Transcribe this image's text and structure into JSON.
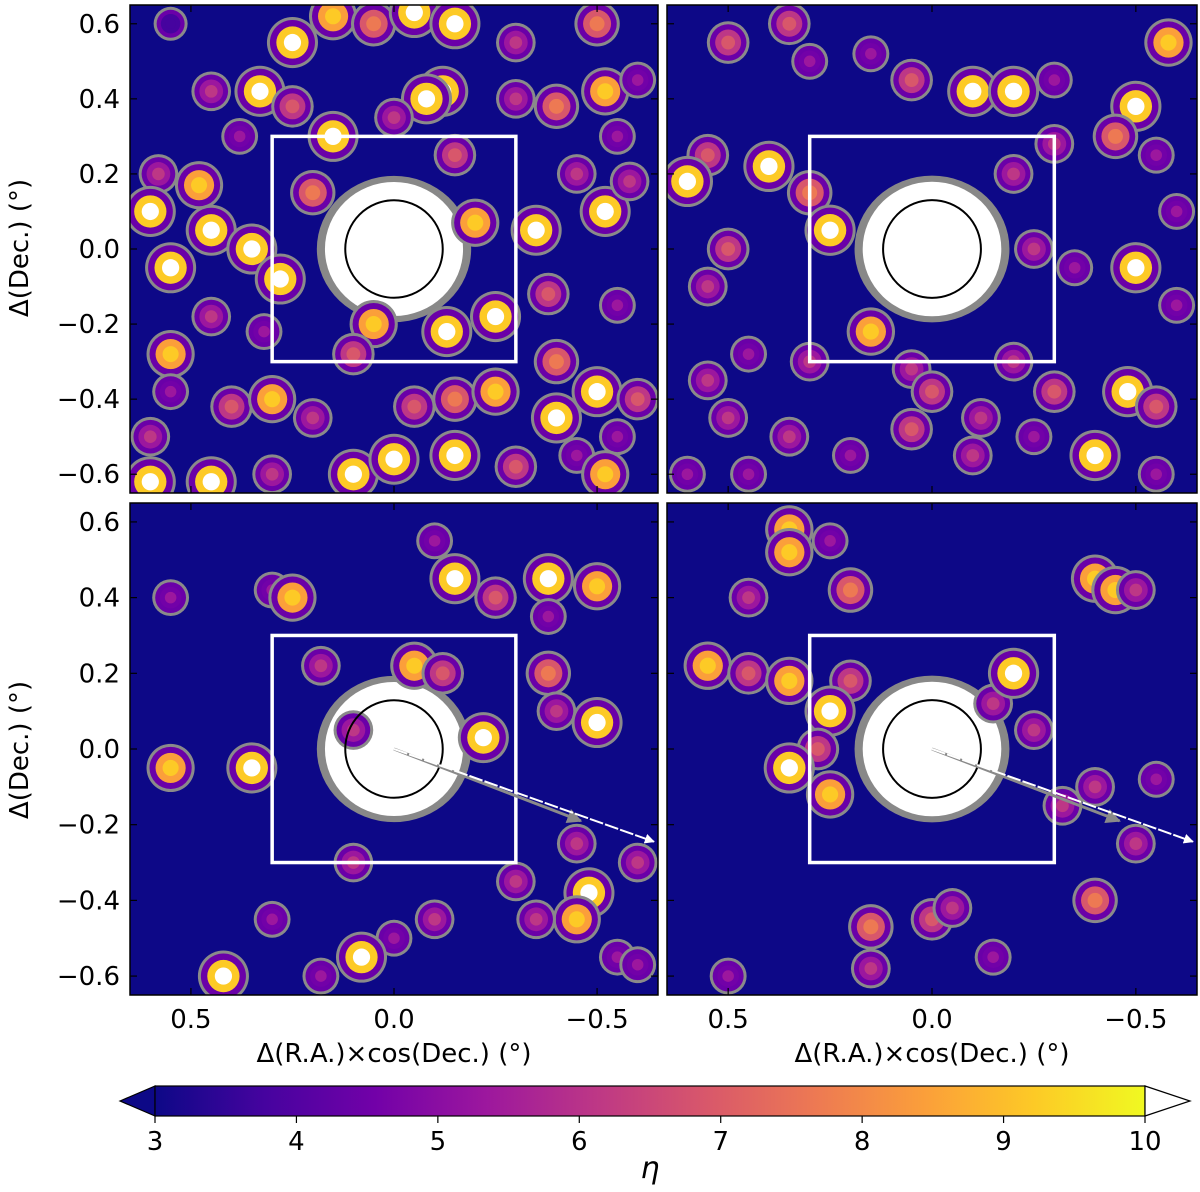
{
  "chart_data": [
    {
      "type": "heatmap",
      "panel": "top-left",
      "xlabel": "",
      "ylabel": "Δ(Dec.) (°)",
      "xlim": [
        0.65,
        -0.65
      ],
      "ylim": [
        -0.65,
        0.65
      ],
      "xticks": [],
      "yticks": [
        "0.6",
        "0.4",
        "0.2",
        "0.0",
        "−0.2",
        "−0.4",
        "−0.6"
      ],
      "box": [
        0.3,
        -0.3,
        -0.3,
        0.3
      ],
      "circle_radius": 0.12,
      "blobs": [
        [
          0.55,
          0.6,
          4
        ],
        [
          0.45,
          0.42,
          6
        ],
        [
          0.33,
          0.42,
          10
        ],
        [
          0.25,
          0.55,
          10
        ],
        [
          0.15,
          0.62,
          9
        ],
        [
          0.05,
          0.6,
          8
        ],
        [
          -0.05,
          0.63,
          10
        ],
        [
          -0.15,
          0.6,
          10
        ],
        [
          -0.3,
          0.55,
          6
        ],
        [
          -0.5,
          0.6,
          8
        ],
        [
          -0.52,
          0.42,
          9
        ],
        [
          -0.6,
          0.45,
          5
        ],
        [
          -0.12,
          0.42,
          10
        ],
        [
          -0.08,
          0.4,
          10
        ],
        [
          0.0,
          0.35,
          6
        ],
        [
          0.25,
          0.38,
          7
        ],
        [
          0.38,
          0.3,
          5
        ],
        [
          -0.3,
          0.4,
          6
        ],
        [
          -0.4,
          0.38,
          8
        ],
        [
          -0.55,
          0.3,
          5
        ],
        [
          0.58,
          0.2,
          6
        ],
        [
          0.48,
          0.17,
          9
        ],
        [
          0.6,
          0.1,
          10
        ],
        [
          0.45,
          0.05,
          10
        ],
        [
          0.55,
          -0.05,
          10
        ],
        [
          0.35,
          0.0,
          10
        ],
        [
          0.28,
          -0.08,
          10
        ],
        [
          0.2,
          0.15,
          8
        ],
        [
          0.15,
          0.3,
          10
        ],
        [
          -0.15,
          0.25,
          7
        ],
        [
          -0.2,
          0.07,
          9
        ],
        [
          -0.35,
          0.05,
          10
        ],
        [
          -0.38,
          -0.12,
          7
        ],
        [
          -0.52,
          0.1,
          10
        ],
        [
          -0.45,
          0.2,
          6
        ],
        [
          -0.58,
          0.18,
          6
        ],
        [
          -0.55,
          -0.15,
          5
        ],
        [
          -0.25,
          -0.18,
          10
        ],
        [
          -0.13,
          -0.22,
          10
        ],
        [
          0.05,
          -0.2,
          9
        ],
        [
          0.1,
          -0.28,
          7
        ],
        [
          0.45,
          -0.18,
          6
        ],
        [
          0.55,
          -0.28,
          9
        ],
        [
          0.55,
          -0.38,
          5
        ],
        [
          0.4,
          -0.42,
          7
        ],
        [
          0.3,
          -0.4,
          9
        ],
        [
          0.2,
          -0.45,
          6
        ],
        [
          -0.05,
          -0.42,
          7
        ],
        [
          -0.15,
          -0.4,
          8
        ],
        [
          -0.25,
          -0.38,
          9
        ],
        [
          -0.4,
          -0.3,
          8
        ],
        [
          -0.5,
          -0.38,
          10
        ],
        [
          -0.4,
          -0.45,
          10
        ],
        [
          -0.6,
          -0.4,
          7
        ],
        [
          -0.55,
          -0.5,
          5
        ],
        [
          0.6,
          -0.5,
          6
        ],
        [
          0.6,
          -0.62,
          10
        ],
        [
          0.45,
          -0.62,
          10
        ],
        [
          0.3,
          -0.6,
          6
        ],
        [
          0.1,
          -0.6,
          10
        ],
        [
          0.0,
          -0.56,
          10
        ],
        [
          -0.15,
          -0.55,
          10
        ],
        [
          -0.3,
          -0.58,
          7
        ],
        [
          -0.45,
          -0.55,
          5
        ],
        [
          -0.52,
          -0.6,
          9
        ],
        [
          0.32,
          -0.22,
          5
        ]
      ]
    },
    {
      "type": "heatmap",
      "panel": "top-right",
      "xlabel": "",
      "ylabel": "",
      "xlim": [
        0.65,
        -0.65
      ],
      "ylim": [
        -0.65,
        0.65
      ],
      "xticks": [],
      "yticks": [],
      "box": [
        0.3,
        -0.3,
        -0.3,
        0.3
      ],
      "circle_radius": 0.12,
      "blobs": [
        [
          0.5,
          0.55,
          7
        ],
        [
          0.35,
          0.6,
          7
        ],
        [
          0.3,
          0.5,
          5
        ],
        [
          0.15,
          0.52,
          5
        ],
        [
          0.05,
          0.45,
          7
        ],
        [
          -0.1,
          0.42,
          10
        ],
        [
          -0.2,
          0.42,
          10
        ],
        [
          -0.3,
          0.45,
          5
        ],
        [
          -0.5,
          0.38,
          10
        ],
        [
          -0.58,
          0.55,
          9
        ],
        [
          0.55,
          0.25,
          7
        ],
        [
          0.6,
          0.18,
          10
        ],
        [
          0.4,
          0.22,
          10
        ],
        [
          0.3,
          0.15,
          8
        ],
        [
          0.25,
          0.05,
          10
        ],
        [
          0.5,
          0.0,
          7
        ],
        [
          0.55,
          -0.1,
          6
        ],
        [
          -0.2,
          0.2,
          6
        ],
        [
          -0.3,
          0.28,
          6
        ],
        [
          -0.45,
          0.3,
          8
        ],
        [
          -0.55,
          0.25,
          5
        ],
        [
          -0.6,
          0.1,
          5
        ],
        [
          -0.25,
          0.0,
          6
        ],
        [
          -0.35,
          -0.05,
          5
        ],
        [
          -0.5,
          -0.05,
          10
        ],
        [
          -0.6,
          -0.15,
          5
        ],
        [
          0.45,
          -0.28,
          5
        ],
        [
          0.55,
          -0.35,
          6
        ],
        [
          0.3,
          -0.3,
          6
        ],
        [
          0.15,
          -0.22,
          9
        ],
        [
          0.05,
          -0.32,
          6
        ],
        [
          -0.2,
          -0.3,
          6
        ],
        [
          -0.3,
          -0.38,
          7
        ],
        [
          -0.48,
          -0.38,
          10
        ],
        [
          -0.55,
          -0.42,
          7
        ],
        [
          0.5,
          -0.45,
          6
        ],
        [
          0.35,
          -0.5,
          6
        ],
        [
          0.2,
          -0.55,
          5
        ],
        [
          0.05,
          -0.48,
          7
        ],
        [
          0.0,
          -0.38,
          7
        ],
        [
          -0.1,
          -0.55,
          6
        ],
        [
          -0.25,
          -0.5,
          5
        ],
        [
          -0.4,
          -0.55,
          10
        ],
        [
          -0.55,
          -0.6,
          5
        ],
        [
          0.45,
          -0.6,
          5
        ],
        [
          0.6,
          -0.6,
          5
        ],
        [
          -0.12,
          -0.45,
          6
        ]
      ]
    },
    {
      "type": "heatmap",
      "panel": "bottom-left",
      "xlabel": "Δ(R.A.)×cos(Dec.) (°)",
      "ylabel": "Δ(Dec.) (°)",
      "xlim": [
        0.65,
        -0.65
      ],
      "ylim": [
        -0.65,
        0.65
      ],
      "xticks": [
        "0.5",
        "0.0",
        "−0.5"
      ],
      "yticks": [
        "0.6",
        "0.4",
        "0.2",
        "0.0",
        "−0.2",
        "−0.4",
        "−0.6"
      ],
      "box": [
        0.3,
        -0.3,
        -0.3,
        0.3
      ],
      "circle_radius": 0.12,
      "blobs": [
        [
          -0.1,
          0.55,
          5
        ],
        [
          -0.15,
          0.45,
          10
        ],
        [
          -0.25,
          0.4,
          7
        ],
        [
          -0.38,
          0.45,
          10
        ],
        [
          -0.5,
          0.43,
          9
        ],
        [
          0.3,
          0.42,
          5
        ],
        [
          0.25,
          0.4,
          9
        ],
        [
          0.55,
          0.4,
          5
        ],
        [
          -0.38,
          0.35,
          5
        ],
        [
          0.18,
          0.22,
          6
        ],
        [
          -0.05,
          0.22,
          9
        ],
        [
          -0.12,
          0.2,
          7
        ],
        [
          -0.38,
          0.2,
          8
        ],
        [
          -0.4,
          0.1,
          6
        ],
        [
          -0.5,
          0.07,
          10
        ],
        [
          0.55,
          -0.05,
          9
        ],
        [
          0.35,
          -0.05,
          10
        ],
        [
          0.1,
          0.05,
          6
        ],
        [
          -0.22,
          0.03,
          10
        ],
        [
          -0.45,
          -0.25,
          6
        ],
        [
          -0.48,
          -0.38,
          10
        ],
        [
          -0.45,
          -0.45,
          9
        ],
        [
          -0.35,
          -0.45,
          6
        ],
        [
          -0.6,
          -0.3,
          6
        ],
        [
          0.1,
          -0.3,
          6
        ],
        [
          0.0,
          -0.5,
          5
        ],
        [
          -0.1,
          -0.45,
          6
        ],
        [
          0.3,
          -0.45,
          5
        ],
        [
          0.08,
          -0.55,
          10
        ],
        [
          0.18,
          -0.6,
          5
        ],
        [
          0.42,
          -0.6,
          10
        ],
        [
          -0.3,
          -0.35,
          6
        ],
        [
          -0.55,
          -0.55,
          5
        ],
        [
          -0.6,
          -0.57,
          5
        ]
      ]
    },
    {
      "type": "heatmap",
      "panel": "bottom-right",
      "xlabel": "Δ(R.A.)×cos(Dec.) (°)",
      "ylabel": "",
      "xlim": [
        0.65,
        -0.65
      ],
      "ylim": [
        -0.65,
        0.65
      ],
      "xticks": [
        "0.5",
        "0.0",
        "−0.5"
      ],
      "yticks": [],
      "box": [
        0.3,
        -0.3,
        -0.3,
        0.3
      ],
      "circle_radius": 0.12,
      "blobs": [
        [
          0.35,
          0.58,
          9
        ],
        [
          0.35,
          0.52,
          9
        ],
        [
          0.25,
          0.55,
          5
        ],
        [
          0.45,
          0.4,
          6
        ],
        [
          0.2,
          0.42,
          8
        ],
        [
          -0.4,
          0.45,
          9
        ],
        [
          -0.45,
          0.42,
          9
        ],
        [
          -0.5,
          0.42,
          6
        ],
        [
          0.55,
          0.22,
          9
        ],
        [
          0.45,
          0.2,
          7
        ],
        [
          0.35,
          0.18,
          9
        ],
        [
          0.2,
          0.18,
          7
        ],
        [
          0.25,
          0.1,
          10
        ],
        [
          0.28,
          0.0,
          7
        ],
        [
          0.35,
          -0.05,
          10
        ],
        [
          0.25,
          -0.12,
          9
        ],
        [
          -0.15,
          0.12,
          6
        ],
        [
          -0.2,
          0.2,
          10
        ],
        [
          -0.25,
          0.05,
          6
        ],
        [
          -0.32,
          -0.15,
          6
        ],
        [
          -0.4,
          -0.1,
          6
        ],
        [
          -0.55,
          -0.08,
          5
        ],
        [
          -0.5,
          -0.25,
          6
        ],
        [
          0.0,
          -0.45,
          7
        ],
        [
          0.15,
          -0.47,
          8
        ],
        [
          0.15,
          -0.58,
          6
        ],
        [
          -0.05,
          -0.42,
          6
        ],
        [
          -0.15,
          -0.55,
          5
        ],
        [
          -0.4,
          -0.4,
          8
        ],
        [
          0.5,
          -0.6,
          5
        ]
      ]
    }
  ],
  "colorbar": {
    "label": "η",
    "ticks": [
      "3",
      "4",
      "5",
      "6",
      "7",
      "8",
      "9",
      "10"
    ],
    "range": [
      3,
      10
    ],
    "colors": [
      "#0d0887",
      "#46039f",
      "#7201a8",
      "#9c179e",
      "#bd3786",
      "#d8576b",
      "#ed7953",
      "#fb9f3a",
      "#fdca26",
      "#f0f921"
    ],
    "extend_high": "#ffffff"
  },
  "arrows": {
    "gray": "#8a8a8a",
    "white": "#ffffff"
  }
}
